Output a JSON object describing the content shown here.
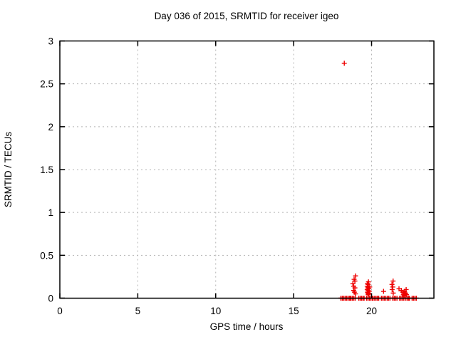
{
  "window": {
    "background": "#ffffff"
  },
  "chart_data": {
    "type": "scatter",
    "title": "Day 036 of 2015, SRMTID for receiver igeo",
    "xlabel": "GPS time / hours",
    "ylabel": "SRMTID / TECUs",
    "xlim": [
      0,
      24
    ],
    "ylim": [
      0,
      3
    ],
    "xticks": [
      0,
      5,
      10,
      15,
      20
    ],
    "yticks": [
      0,
      0.5,
      1,
      1.5,
      2,
      2.5,
      3
    ],
    "grid": "dashed",
    "legend_position": "none",
    "marker": "plus",
    "marker_color": "#ee0000",
    "grid_color": "#b4b4b4",
    "axis_color": "#000000",
    "series": [
      {
        "name": "SRMTID",
        "points": [
          [
            18.25,
            2.74
          ],
          [
            18.97,
            0.26
          ],
          [
            18.88,
            0.22
          ],
          [
            18.93,
            0.2
          ],
          [
            18.8,
            0.17
          ],
          [
            18.85,
            0.14
          ],
          [
            18.93,
            0.12
          ],
          [
            18.85,
            0.09
          ],
          [
            18.9,
            0.07
          ],
          [
            18.97,
            0.05
          ],
          [
            19.8,
            0.19
          ],
          [
            19.74,
            0.17
          ],
          [
            19.78,
            0.16
          ],
          [
            19.72,
            0.14
          ],
          [
            19.8,
            0.13
          ],
          [
            19.88,
            0.13
          ],
          [
            19.76,
            0.12
          ],
          [
            19.83,
            0.11
          ],
          [
            19.72,
            0.1
          ],
          [
            19.78,
            0.09
          ],
          [
            19.85,
            0.08
          ],
          [
            19.74,
            0.07
          ],
          [
            19.8,
            0.06
          ],
          [
            19.76,
            0.06
          ],
          [
            19.82,
            0.05
          ],
          [
            19.78,
            0.04
          ],
          [
            20.77,
            0.08
          ],
          [
            21.38,
            0.2
          ],
          [
            21.31,
            0.16
          ],
          [
            21.36,
            0.13
          ],
          [
            21.32,
            0.1
          ],
          [
            21.39,
            0.06
          ],
          [
            21.76,
            0.11
          ],
          [
            21.91,
            0.09
          ],
          [
            22.22,
            0.1
          ],
          [
            22.0,
            0.07
          ],
          [
            22.06,
            0.06
          ],
          [
            22.12,
            0.08
          ],
          [
            22.16,
            0.05
          ],
          [
            22.04,
            0.04
          ],
          [
            22.1,
            0.03
          ],
          [
            22.18,
            0.06
          ],
          [
            22.24,
            0.04
          ],
          [
            18.03,
            0
          ],
          [
            18.12,
            0
          ],
          [
            18.21,
            0
          ],
          [
            18.3,
            0
          ],
          [
            18.39,
            0
          ],
          [
            18.48,
            0
          ],
          [
            18.57,
            0
          ],
          [
            18.64,
            0
          ],
          [
            18.68,
            0
          ],
          [
            18.77,
            0
          ],
          [
            18.86,
            0
          ],
          [
            18.95,
            0
          ],
          [
            19.18,
            0
          ],
          [
            19.27,
            0
          ],
          [
            19.36,
            0
          ],
          [
            19.45,
            0
          ],
          [
            19.52,
            0
          ],
          [
            19.68,
            0
          ],
          [
            19.77,
            0
          ],
          [
            19.86,
            0
          ],
          [
            19.95,
            0
          ],
          [
            20.04,
            0
          ],
          [
            20.1,
            0
          ],
          [
            20.2,
            0
          ],
          [
            20.29,
            0
          ],
          [
            20.38,
            0
          ],
          [
            20.46,
            0
          ],
          [
            20.63,
            0
          ],
          [
            20.72,
            0
          ],
          [
            20.81,
            0
          ],
          [
            20.9,
            0
          ],
          [
            21.0,
            0
          ],
          [
            21.09,
            0
          ],
          [
            21.18,
            0
          ],
          [
            21.36,
            0
          ],
          [
            21.45,
            0
          ],
          [
            21.54,
            0
          ],
          [
            21.63,
            0
          ],
          [
            21.8,
            0
          ],
          [
            21.89,
            0
          ],
          [
            21.98,
            0
          ],
          [
            22.07,
            0
          ],
          [
            22.19,
            0
          ],
          [
            22.28,
            0
          ],
          [
            22.37,
            0
          ],
          [
            22.43,
            0
          ],
          [
            22.6,
            0
          ],
          [
            22.69,
            0
          ],
          [
            22.78,
            0
          ],
          [
            22.87,
            0
          ]
        ]
      }
    ]
  }
}
